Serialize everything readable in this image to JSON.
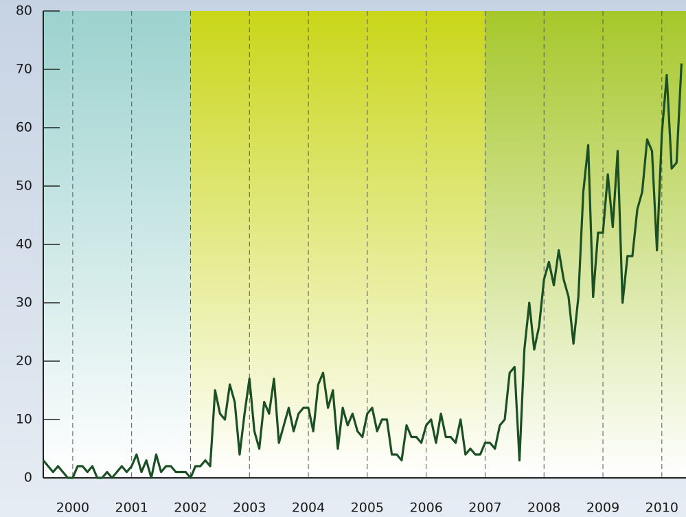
{
  "chart_data": {
    "type": "line",
    "x": [
      1999.5,
      1999.5833,
      1999.6667,
      1999.75,
      1999.8333,
      1999.9167,
      2000,
      2000.0833,
      2000.1667,
      2000.25,
      2000.3333,
      2000.4167,
      2000.5,
      2000.5833,
      2000.6667,
      2000.75,
      2000.8333,
      2000.9167,
      2001,
      2001.0833,
      2001.1667,
      2001.25,
      2001.3333,
      2001.4167,
      2001.5,
      2001.5833,
      2001.6667,
      2001.75,
      2001.8333,
      2001.9167,
      2002,
      2002.0833,
      2002.1667,
      2002.25,
      2002.3333,
      2002.4167,
      2002.5,
      2002.5833,
      2002.6667,
      2002.75,
      2002.8333,
      2002.9167,
      2003,
      2003.0833,
      2003.1667,
      2003.25,
      2003.3333,
      2003.4167,
      2003.5,
      2003.5833,
      2003.6667,
      2003.75,
      2003.8333,
      2003.9167,
      2004,
      2004.0833,
      2004.1667,
      2004.25,
      2004.3333,
      2004.4167,
      2004.5,
      2004.5833,
      2004.6667,
      2004.75,
      2004.8333,
      2004.9167,
      2005,
      2005.0833,
      2005.1667,
      2005.25,
      2005.3333,
      2005.4167,
      2005.5,
      2005.5833,
      2005.6667,
      2005.75,
      2005.8333,
      2005.9167,
      2006,
      2006.0833,
      2006.1667,
      2006.25,
      2006.3333,
      2006.4167,
      2006.5,
      2006.5833,
      2006.6667,
      2006.75,
      2006.8333,
      2006.9167,
      2007,
      2007.0833,
      2007.1667,
      2007.25,
      2007.3333,
      2007.4167,
      2007.5,
      2007.5833,
      2007.6667,
      2007.75,
      2007.8333,
      2007.9167,
      2008,
      2008.0833,
      2008.1667,
      2008.25,
      2008.3333,
      2008.4167,
      2008.5,
      2008.5833,
      2008.6667,
      2008.75,
      2008.8333,
      2008.9167,
      2009,
      2009.0833,
      2009.1667,
      2009.25,
      2009.3333,
      2009.4167,
      2009.5,
      2009.5833,
      2009.6667,
      2009.75,
      2009.8333,
      2009.9167,
      2010,
      2010.0833,
      2010.1667,
      2010.25,
      2010.3333
    ],
    "series": [
      {
        "color": "#1b4f24",
        "values": [
          3,
          2,
          1,
          2,
          1,
          0,
          0,
          2,
          2,
          1,
          2,
          0,
          0,
          1,
          0,
          1,
          2,
          1,
          2,
          4,
          1,
          3,
          0,
          4,
          1,
          2,
          2,
          1,
          1,
          1,
          0,
          2,
          2,
          3,
          2,
          15,
          11,
          10,
          16,
          13,
          4,
          11,
          17,
          8,
          5,
          13,
          11,
          17,
          6,
          9,
          12,
          8,
          11,
          12,
          12,
          8,
          16,
          18,
          12,
          15,
          5,
          12,
          9,
          11,
          8,
          7,
          11,
          12,
          8,
          10,
          10,
          4,
          4,
          3,
          9,
          7,
          7,
          6,
          9,
          10,
          6,
          11,
          7,
          7,
          6,
          10,
          4,
          5,
          4,
          4,
          6,
          6,
          5,
          9,
          10,
          18,
          19,
          3,
          22,
          30,
          22,
          26,
          34,
          37,
          33,
          39,
          34,
          31,
          23,
          31,
          49,
          57,
          31,
          42,
          42,
          52,
          43,
          56,
          30,
          38,
          38,
          46,
          49,
          58,
          56,
          39,
          59,
          69,
          53,
          54,
          71
        ]
      }
    ],
    "xlim": [
      1999.5,
      2010.41
    ],
    "ylim": [
      0,
      80
    ],
    "xticks": [
      2000,
      2001,
      2002,
      2003,
      2004,
      2005,
      2006,
      2007,
      2008,
      2009,
      2010
    ],
    "yticks": [
      0,
      10,
      20,
      30,
      40,
      50,
      60,
      70,
      80
    ],
    "grid": "x-dashed",
    "regions": [
      {
        "xlim": [
          1999.5,
          2002
        ],
        "color": "#9cd2ce"
      },
      {
        "xlim": [
          2002,
          2007
        ],
        "color": "#c9d618"
      },
      {
        "xlim": [
          2007,
          2010.41
        ],
        "color": "#a6c72a"
      }
    ]
  }
}
